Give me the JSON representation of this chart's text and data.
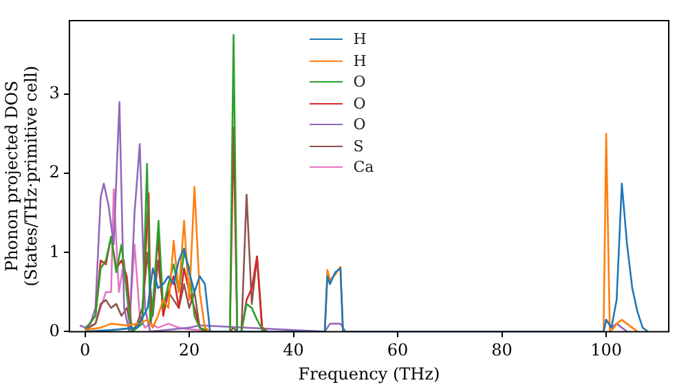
{
  "chart_data": {
    "type": "line",
    "xlabel": "Frequency (THz)",
    "ylabel": "Phonon projected DOS\n(States/THz·primitive cell)",
    "xlim": [
      -3,
      112
    ],
    "ylim": [
      0,
      3.93
    ],
    "xticks": [
      0,
      20,
      40,
      60,
      80,
      100
    ],
    "yticks": [
      0,
      1,
      2,
      3
    ],
    "grid": false,
    "legend": "top",
    "marker": "none",
    "line_style": "solid",
    "series": [
      {
        "name": "H",
        "color": "#1f77b4",
        "x": [
          0,
          5,
          10,
          12,
          13,
          14,
          15,
          16,
          17,
          18,
          19,
          20,
          21,
          22,
          23,
          24,
          46,
          46.5,
          47,
          48,
          49,
          49.5,
          50,
          99.5,
          100,
          101,
          102,
          103,
          104,
          105,
          106,
          107,
          108
        ],
        "values": [
          0,
          0.02,
          0.05,
          0.3,
          0.8,
          0.55,
          0.6,
          0.7,
          0.6,
          0.9,
          1.05,
          0.75,
          0.5,
          0.7,
          0.6,
          0,
          0,
          0.7,
          0.6,
          0.75,
          0.8,
          0,
          0,
          0,
          0.15,
          0.05,
          0.4,
          1.87,
          1.1,
          0.55,
          0.25,
          0.05,
          0
        ]
      },
      {
        "name": "H",
        "color": "#ff7f0e",
        "x": [
          0,
          3,
          5,
          8,
          10,
          12,
          13,
          14,
          15,
          16,
          17,
          18,
          19,
          20,
          21,
          22,
          23,
          24,
          46,
          46.5,
          47,
          48,
          49,
          49.5,
          50,
          99.5,
          100,
          100.7,
          101.5,
          102,
          103,
          104,
          105,
          106
        ],
        "values": [
          0.02,
          0.05,
          0.1,
          0.08,
          0.1,
          0.15,
          0.05,
          0.2,
          0.4,
          0.3,
          1.15,
          0.5,
          1.4,
          0.4,
          1.83,
          0.5,
          0.05,
          0,
          0,
          0.78,
          0.65,
          0.72,
          0.82,
          0,
          0,
          0,
          2.5,
          0,
          0.05,
          0.1,
          0.15,
          0.1,
          0.05,
          0
        ]
      },
      {
        "name": "O",
        "color": "#2ca02c",
        "x": [
          0,
          2,
          3,
          4,
          5,
          6,
          7,
          8,
          9,
          10,
          11,
          11.9,
          12.5,
          13,
          14.1,
          15,
          16,
          17,
          18,
          19,
          20,
          21,
          22,
          24,
          27.8,
          28.5,
          29.2,
          30,
          31,
          32,
          33,
          34,
          35
        ],
        "values": [
          0.02,
          0.2,
          0.8,
          0.9,
          1.2,
          0.75,
          1.1,
          0.5,
          0,
          0.05,
          0.1,
          2.12,
          0.1,
          0.3,
          1.4,
          0.3,
          0.6,
          0.85,
          0.5,
          1.0,
          0.8,
          0.2,
          0.05,
          0,
          0,
          3.75,
          0,
          0,
          0.35,
          0.3,
          0.15,
          0.03,
          0
        ]
      },
      {
        "name": "O",
        "color": "#d62728",
        "x": [
          0,
          2,
          3,
          4,
          5,
          6,
          7,
          8,
          9,
          10,
          11,
          12.2,
          12.6,
          13,
          14,
          15,
          16,
          17,
          18,
          19,
          20,
          21,
          22,
          24,
          27.8,
          28.5,
          29.2,
          30,
          31,
          32,
          33,
          34,
          35
        ],
        "values": [
          0.02,
          0.2,
          0.9,
          0.85,
          1.2,
          0.8,
          0.9,
          0.7,
          0,
          0.05,
          0.2,
          1.75,
          0.1,
          0.3,
          1.2,
          0.2,
          0.5,
          0.7,
          0.3,
          0.8,
          0.5,
          0.3,
          0.05,
          0,
          0,
          2.58,
          0,
          0,
          0.4,
          0.55,
          0.95,
          0.05,
          0
        ]
      },
      {
        "name": "O",
        "color": "#9467bd",
        "x": [
          -1,
          0,
          1,
          2,
          3,
          3.6,
          4.5,
          5.5,
          6.6,
          7.5,
          8.5,
          9.5,
          10.5,
          11.5,
          12.5,
          20,
          22,
          46,
          47,
          48,
          49,
          50,
          99.5,
          100,
          101,
          102,
          103,
          104
        ],
        "values": [
          0.08,
          0.05,
          0.1,
          0.3,
          1.7,
          1.87,
          1.6,
          1.1,
          2.9,
          0.3,
          0,
          1.5,
          2.37,
          0.3,
          0,
          0.05,
          0.08,
          0,
          0.1,
          0.1,
          0.1,
          0,
          0,
          0.15,
          0.05,
          0.1,
          0.05,
          0
        ]
      },
      {
        "name": "S",
        "color": "#8c564b",
        "x": [
          0,
          2,
          3,
          4,
          5,
          6,
          7,
          8,
          9,
          10,
          11,
          12,
          13,
          14,
          15,
          16,
          17,
          18,
          19,
          20,
          21,
          22,
          23,
          24,
          27.8,
          28.5,
          29.2,
          30,
          31,
          32,
          33,
          34
        ],
        "values": [
          0.02,
          0.1,
          0.35,
          0.4,
          0.3,
          0.35,
          0.2,
          0.3,
          0,
          0.1,
          0.3,
          1.0,
          0.2,
          0.9,
          0.3,
          0.5,
          0.4,
          0.3,
          0.6,
          0.3,
          0.5,
          0.05,
          0,
          0,
          0,
          0.05,
          0,
          0,
          1.73,
          0.35,
          0.95,
          0
        ]
      },
      {
        "name": "Ca",
        "color": "#e377c2",
        "x": [
          0,
          2,
          3,
          4,
          5,
          5.5,
          6.5,
          7.5,
          8.5,
          9.5,
          10.5,
          11.5,
          12.5,
          14,
          16,
          18,
          20,
          22,
          24
        ],
        "values": [
          0.05,
          0.1,
          0.3,
          0.5,
          0.5,
          1.8,
          0.5,
          0.9,
          0.1,
          1.1,
          0.2,
          0.05,
          0.1,
          0.05,
          0.1,
          0.05,
          0.03,
          0.02,
          0
        ]
      }
    ]
  }
}
